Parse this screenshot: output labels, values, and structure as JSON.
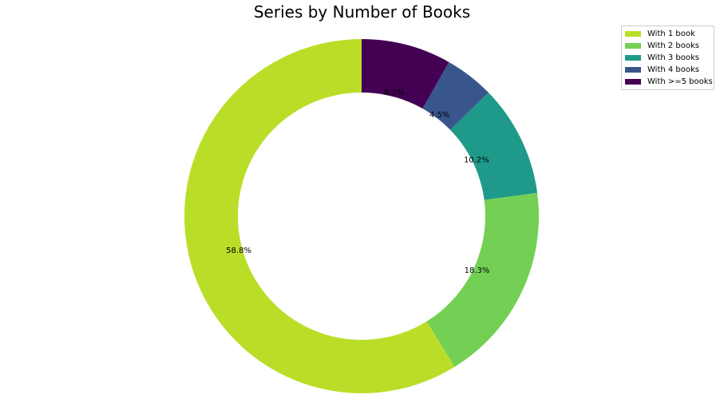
{
  "chart_data": {
    "type": "pie",
    "title": "Series by Number of Books",
    "categories": [
      "With 1 book",
      "With 2 books",
      "With 3 books",
      "With 4 books",
      "With >=5 books"
    ],
    "values": [
      58.8,
      18.3,
      10.2,
      4.5,
      8.2
    ],
    "value_labels": [
      "58.8%",
      "18.3%",
      "10.2%",
      "4.5%",
      "8.2%"
    ],
    "colors": [
      "#bade28",
      "#74d055",
      "#1f9a8a",
      "#39568c",
      "#440154"
    ],
    "donut": true,
    "start_angle_deg": 90,
    "direction": "counterclockwise",
    "legend_position": "top-right"
  }
}
